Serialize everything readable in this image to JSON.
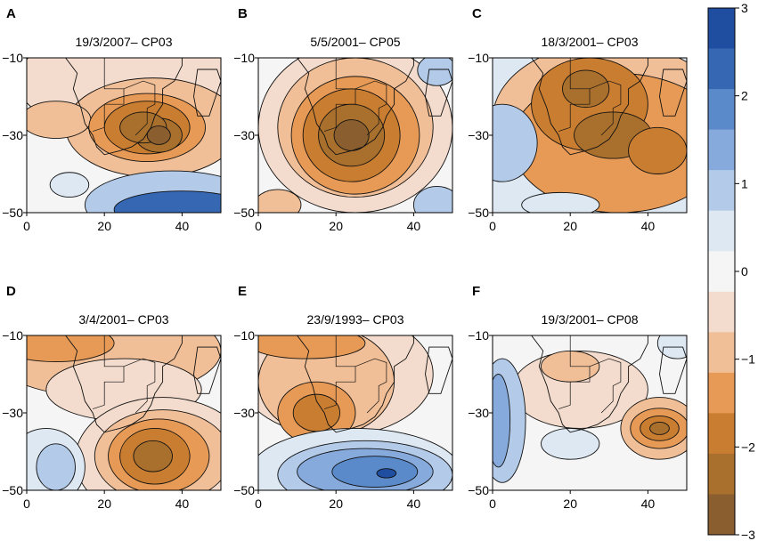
{
  "chart_data": {
    "type": "contour-map",
    "x_ticks": [
      0,
      20,
      40
    ],
    "y_ticks": [
      -10,
      -30,
      -50
    ],
    "xlim": [
      0,
      50
    ],
    "ylim": [
      -50,
      -10
    ],
    "colorbar": {
      "ticks": [
        "3",
        "2",
        "1",
        "0",
        "−1",
        "−2",
        "−3"
      ],
      "levels": [
        3,
        2.5,
        2,
        1.5,
        1,
        0.5,
        0,
        -0.5,
        -1,
        -1.5,
        -2,
        -2.5,
        -3
      ],
      "colors": [
        "#1f4ea1",
        "#3567b3",
        "#5b8acb",
        "#86aadc",
        "#b3cbe9",
        "#dde8f2",
        "#f4f5f4",
        "#f3dccd",
        "#f1bf97",
        "#e79a55",
        "#c97d31",
        "#a9702d",
        "#8a5e2f"
      ]
    },
    "panels": [
      {
        "letter": "A",
        "title": "19/3/2007– CP03"
      },
      {
        "letter": "B",
        "title": "5/5/2001– CP05"
      },
      {
        "letter": "C",
        "title": "18/3/2001– CP03"
      },
      {
        "letter": "D",
        "title": "3/4/2001– CP03"
      },
      {
        "letter": "E",
        "title": "23/9/1993– CP03"
      },
      {
        "letter": "F",
        "title": "19/3/2001– CP08"
      }
    ]
  }
}
